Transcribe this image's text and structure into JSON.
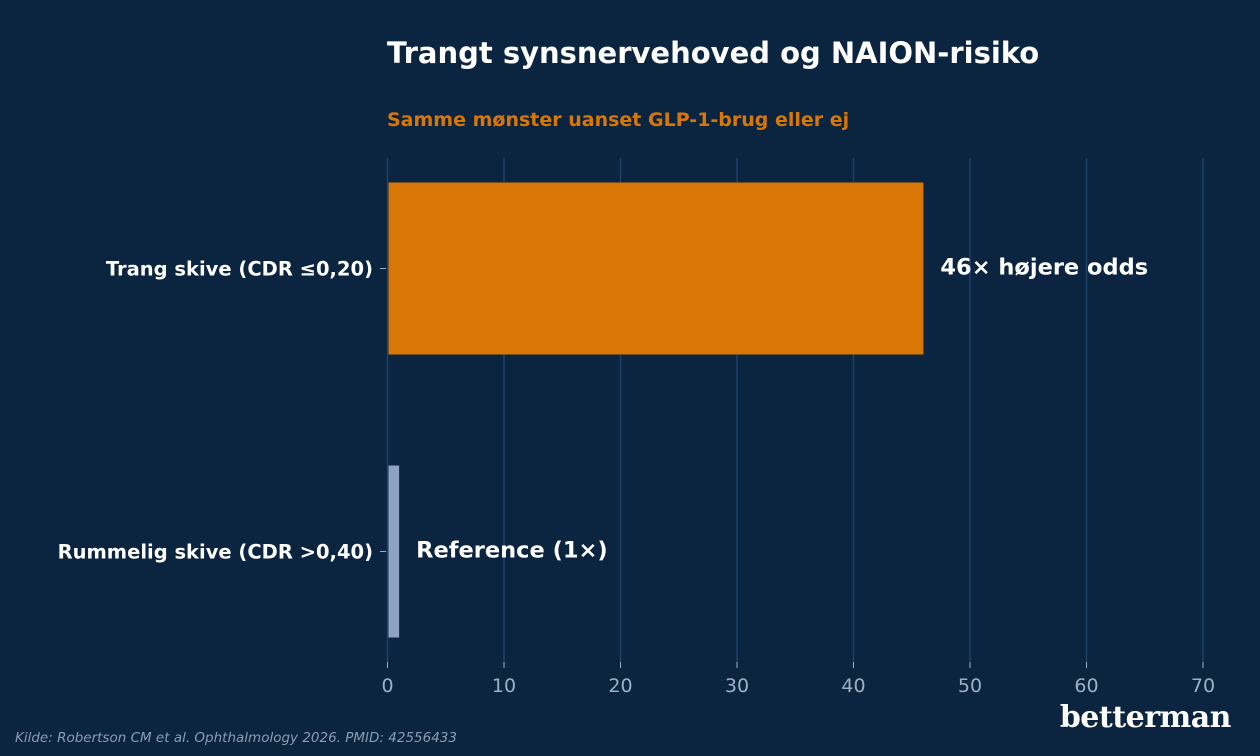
{
  "title": "Trangt synsnervehoved og NAION-risiko",
  "subtitle": "Samme mønster uanset GLP-1-brug eller ej",
  "source": "Kilde: Robertson CM et al. Ophthalmology 2026. PMID: 42556433",
  "brand": "betterman",
  "colors": {
    "background": "#0b2440",
    "accent": "#d97706",
    "reference_bar": "#8ea3c0",
    "grid": "#1e3f66",
    "tick_text": "#9fb0c6",
    "label_text": "#ffffff"
  },
  "chart_data": {
    "type": "bar",
    "orientation": "horizontal",
    "title": "Trangt synsnervehoved og NAION-risiko",
    "subtitle": "Samme mønster uanset GLP-1-brug eller ej",
    "categories": [
      "Trang skive (CDR ≤0,20)",
      "Rummelig skive (CDR >0,40)"
    ],
    "values": [
      46,
      1
    ],
    "data_labels": [
      "46× højere odds",
      "Reference (1×)"
    ],
    "bar_colors": [
      "#d97706",
      "#8ea3c0"
    ],
    "xlim": [
      0,
      70
    ],
    "xticks": [
      0,
      10,
      20,
      30,
      40,
      50,
      60,
      70
    ],
    "xlabel": "",
    "ylabel": "",
    "grid": "vertical"
  }
}
